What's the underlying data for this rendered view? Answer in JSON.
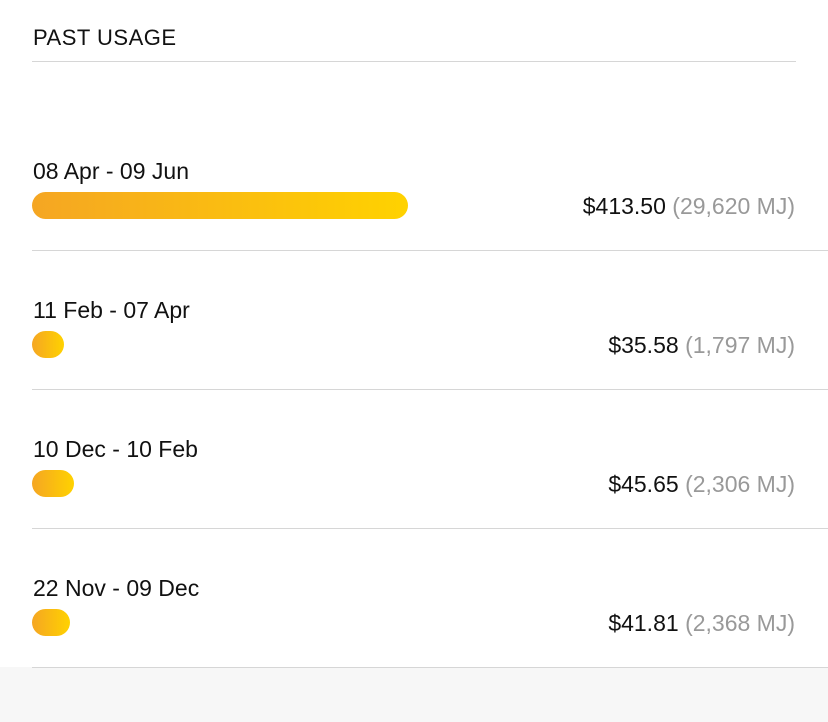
{
  "header": {
    "title": "PAST USAGE"
  },
  "colors": {
    "bar_start": "#f5a623",
    "bar_end": "#ffd200"
  },
  "usage": [
    {
      "period": "08 Apr - 09 Jun",
      "cost": "$413.50",
      "energy": "(29,620 MJ)",
      "cost_value": 413.5
    },
    {
      "period": "11 Feb - 07 Apr",
      "cost": "$35.58",
      "energy": "(1,797 MJ)",
      "cost_value": 35.58
    },
    {
      "period": "10 Dec - 10 Feb",
      "cost": "$45.65",
      "energy": "(2,306 MJ)",
      "cost_value": 45.65
    },
    {
      "period": "22 Nov - 09 Dec",
      "cost": "$41.81",
      "energy": "(2,368 MJ)",
      "cost_value": 41.81
    }
  ]
}
